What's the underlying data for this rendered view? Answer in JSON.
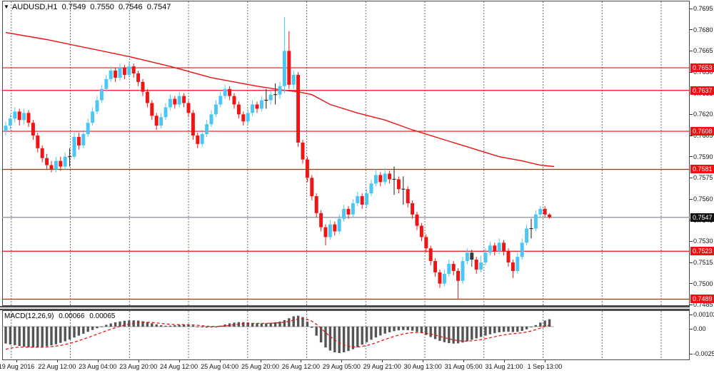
{
  "header": {
    "symbol": "AUDUSD,H1",
    "open": "0.7549",
    "high": "0.7550",
    "low": "0.7546",
    "close": "0.7547",
    "dropdown_arrow": "▼"
  },
  "colors": {
    "bull": "#4cc7f2",
    "bear": "#ee1515",
    "doji": "#1a1a1a",
    "black_candle": "#3a3a3a",
    "level_line": "#ee1111",
    "ma_line": "#ee1111",
    "bid_line": "#9aa1a8",
    "badge_bg": "#ee1111",
    "bid_badge_bg": "#111111",
    "badge_text": "#ffffff",
    "grid": "#6e6e6e",
    "border": "#4a4a4a",
    "macd_bar": "#555555",
    "macd_signal": "#ee1111"
  },
  "chart_data": {
    "type": "candlestick",
    "symbol": "AUDUSD",
    "timeframe": "H1",
    "title": "AUDUSD,H1 0.7549 0.7550 0.7546 0.7547",
    "y_axis": {
      "min": 0.7485,
      "max": 0.7695,
      "step": 0.0015
    },
    "price_axis_ticks": [
      "0.7695",
      "0.7680",
      "0.7665",
      "0.7650",
      "0.7635",
      "0.7620",
      "0.7605",
      "0.7590",
      "0.7575",
      "0.7560",
      "0.7545",
      "0.7530",
      "0.7515",
      "0.7500",
      "0.7485"
    ],
    "time_axis_labels": [
      "19 Aug 2016",
      "22 Aug 12:00",
      "23 Aug 04:00",
      "23 Aug 20:00",
      "24 Aug 12:00",
      "25 Aug 04:00",
      "25 Aug 20:00",
      "26 Aug 12:00",
      "29 Aug 05:00",
      "29 Aug 21:00",
      "30 Aug 13:00",
      "31 Aug 05:00",
      "31 Aug 21:00",
      "1 Sep 13:00"
    ],
    "levels": [
      "0.7653",
      "0.7637",
      "0.7608",
      "0.7581",
      "0.7523",
      "0.7489"
    ],
    "bid": "0.7547",
    "candles": [
      [
        7608,
        7615,
        7605,
        7612
      ],
      [
        7612,
        7620,
        7609,
        7617
      ],
      [
        7617,
        7625,
        7614,
        7622
      ],
      [
        7622,
        7624,
        7612,
        7616
      ],
      [
        7616,
        7624,
        7613,
        7621
      ],
      [
        7621,
        7623,
        7611,
        7614
      ],
      [
        7614,
        7616,
        7602,
        7605
      ],
      [
        7605,
        7607,
        7593,
        7596
      ],
      [
        7596,
        7598,
        7586,
        7589
      ],
      [
        7589,
        7592,
        7581,
        7584
      ],
      [
        7584,
        7587,
        7579,
        7581
      ],
      [
        7581,
        7590,
        7579,
        7587
      ],
      [
        7587,
        7590,
        7580,
        7583
      ],
      [
        7583,
        7593,
        7581,
        7590
      ],
      [
        7590,
        7596,
        7583,
        7590
      ],
      [
        7590,
        7607,
        7588,
        7604
      ],
      [
        7604,
        7607,
        7595,
        7598
      ],
      [
        7598,
        7609,
        7596,
        7606
      ],
      [
        7606,
        7617,
        7604,
        7614
      ],
      [
        7614,
        7625,
        7612,
        7622
      ],
      [
        7622,
        7633,
        7620,
        7630
      ],
      [
        7630,
        7641,
        7628,
        7638
      ],
      [
        7638,
        7648,
        7636,
        7645
      ],
      [
        7645,
        7654,
        7643,
        7651
      ],
      [
        7651,
        7653,
        7643,
        7646
      ],
      [
        7646,
        7656,
        7644,
        7653
      ],
      [
        7653,
        7655,
        7645,
        7648
      ],
      [
        7648,
        7657,
        7646,
        7654
      ],
      [
        7654,
        7656,
        7646,
        7649
      ],
      [
        7649,
        7651,
        7640,
        7643
      ],
      [
        7643,
        7645,
        7633,
        7636
      ],
      [
        7636,
        7638,
        7625,
        7628
      ],
      [
        7628,
        7630,
        7616,
        7619
      ],
      [
        7619,
        7621,
        7609,
        7612
      ],
      [
        7612,
        7621,
        7610,
        7618
      ],
      [
        7618,
        7628,
        7616,
        7625
      ],
      [
        7625,
        7634,
        7623,
        7631
      ],
      [
        7631,
        7633,
        7624,
        7627
      ],
      [
        7627,
        7636,
        7625,
        7633
      ],
      [
        7633,
        7635,
        7625,
        7628
      ],
      [
        7628,
        7630,
        7618,
        7621
      ],
      [
        7621,
        7623,
        7602,
        7605
      ],
      [
        7605,
        7607,
        7596,
        7599
      ],
      [
        7599,
        7609,
        7597,
        7606
      ],
      [
        7606,
        7616,
        7604,
        7613
      ],
      [
        7613,
        7623,
        7611,
        7620
      ],
      [
        7620,
        7630,
        7618,
        7627
      ],
      [
        7627,
        7636,
        7625,
        7633
      ],
      [
        7633,
        7641,
        7631,
        7638
      ],
      [
        7638,
        7640,
        7630,
        7633
      ],
      [
        7633,
        7635,
        7624,
        7627
      ],
      [
        7627,
        7629,
        7617,
        7620
      ],
      [
        7620,
        7622,
        7612,
        7615
      ],
      [
        7615,
        7624,
        7613,
        7621
      ],
      [
        7621,
        7630,
        7619,
        7627
      ],
      [
        7627,
        7629,
        7621,
        7624
      ],
      [
        7624,
        7633,
        7622,
        7630
      ],
      [
        7630,
        7638,
        7624,
        7630
      ],
      [
        7630,
        7637,
        7627,
        7634
      ],
      [
        7634,
        7642,
        7627,
        7634
      ],
      [
        7634,
        7643,
        7631,
        7640
      ],
      [
        7640,
        7689,
        7635,
        7665
      ],
      [
        7665,
        7679,
        7638,
        7641
      ],
      [
        7641,
        7651,
        7638,
        7648
      ],
      [
        7648,
        7650,
        7597,
        7600
      ],
      [
        7600,
        7602,
        7585,
        7588
      ],
      [
        7588,
        7590,
        7572,
        7575
      ],
      [
        7575,
        7577,
        7559,
        7562
      ],
      [
        7562,
        7564,
        7547,
        7550
      ],
      [
        7550,
        7552,
        7537,
        7540
      ],
      [
        7540,
        7542,
        7527,
        7533
      ],
      [
        7533,
        7545,
        7531,
        7542
      ],
      [
        7542,
        7544,
        7534,
        7537
      ],
      [
        7537,
        7549,
        7535,
        7546
      ],
      [
        7546,
        7556,
        7544,
        7553
      ],
      [
        7553,
        7555,
        7546,
        7549
      ],
      [
        7549,
        7560,
        7547,
        7557
      ],
      [
        7557,
        7565,
        7555,
        7562
      ],
      [
        7562,
        7564,
        7553,
        7556
      ],
      [
        7556,
        7567,
        7554,
        7564
      ],
      [
        7564,
        7574,
        7562,
        7571
      ],
      [
        7571,
        7581,
        7569,
        7577
      ],
      [
        7577,
        7579,
        7569,
        7572
      ],
      [
        7572,
        7582,
        7570,
        7578
      ],
      [
        7578,
        7580,
        7571,
        7574
      ],
      [
        7574,
        7583,
        7563,
        7574
      ],
      [
        7574,
        7576,
        7564,
        7567
      ],
      [
        7567,
        7576,
        7556,
        7567
      ],
      [
        7567,
        7569,
        7554,
        7557
      ],
      [
        7557,
        7559,
        7546,
        7549
      ],
      [
        7549,
        7551,
        7538,
        7541
      ],
      [
        7541,
        7543,
        7530,
        7533
      ],
      [
        7533,
        7535,
        7522,
        7525
      ],
      [
        7525,
        7527,
        7513,
        7516
      ],
      [
        7516,
        7518,
        7505,
        7508
      ],
      [
        7508,
        7510,
        7497,
        7500
      ],
      [
        7500,
        7510,
        7498,
        7507
      ],
      [
        7507,
        7517,
        7505,
        7514
      ],
      [
        7514,
        7516,
        7506,
        7509
      ],
      [
        7509,
        7511,
        7489,
        7502
      ],
      [
        7502,
        7519,
        7500,
        7516
      ],
      [
        7516,
        7525,
        7514,
        7522
      ],
      [
        7522,
        7524,
        7512,
        7517,
        1
      ],
      [
        7517,
        7519,
        7507,
        7510
      ],
      [
        7510,
        7520,
        7508,
        7515
      ],
      [
        7515,
        7525,
        7513,
        7522
      ],
      [
        7522,
        7530,
        7520,
        7527
      ],
      [
        7527,
        7529,
        7520,
        7523
      ],
      [
        7523,
        7532,
        7521,
        7529
      ],
      [
        7529,
        7531,
        7520,
        7523
      ],
      [
        7523,
        7525,
        7512,
        7515
      ],
      [
        7515,
        7517,
        7504,
        7509
      ],
      [
        7509,
        7522,
        7507,
        7519
      ],
      [
        7519,
        7532,
        7517,
        7529
      ],
      [
        7529,
        7542,
        7527,
        7539
      ],
      [
        7539,
        7546,
        7532,
        7539
      ],
      [
        7539,
        7552,
        7537,
        7549
      ],
      [
        7549,
        7555,
        7547,
        7553
      ],
      [
        7553,
        7555,
        7547,
        7549
      ],
      [
        7549,
        7550,
        7546,
        7547
      ]
    ],
    "ma_points": [
      [
        0,
        7678
      ],
      [
        9,
        7673
      ],
      [
        18,
        7667
      ],
      [
        27,
        7661
      ],
      [
        36,
        7654
      ],
      [
        45,
        7646
      ],
      [
        55,
        7640
      ],
      [
        61,
        7637
      ],
      [
        64,
        7636
      ],
      [
        67,
        7634
      ],
      [
        71,
        7627
      ],
      [
        77,
        7621
      ],
      [
        83,
        7616
      ],
      [
        89,
        7609
      ],
      [
        96,
        7602
      ],
      [
        102,
        7596
      ],
      [
        108,
        7590
      ],
      [
        113,
        7587
      ],
      [
        117,
        7584
      ],
      [
        120,
        7583
      ]
    ],
    "macd": {
      "name": "MACD(12,26,9)",
      "macd_value": "0.00066",
      "signal_value": "0.00065",
      "axis_ticks": [
        "0.00102",
        "0.00",
        "-0.00251"
      ],
      "histogram": [
        -150,
        -158,
        -165,
        -172,
        -178,
        -183,
        -185,
        -184,
        -180,
        -174,
        -166,
        -156,
        -144,
        -130,
        -114,
        -97,
        -80,
        -63,
        -46,
        -30,
        -14,
        2,
        16,
        28,
        38,
        46,
        52,
        55,
        56,
        54,
        48,
        40,
        30,
        20,
        12,
        8,
        9,
        12,
        15,
        17,
        15,
        9,
        1,
        -6,
        -9,
        -7,
        0,
        9,
        19,
        29,
        36,
        40,
        40,
        37,
        32,
        29,
        28,
        30,
        34,
        39,
        45,
        58,
        75,
        92,
        97,
        85,
        45,
        -10,
        -80,
        -140,
        -185,
        -212,
        -228,
        -234,
        -228,
        -216,
        -200,
        -182,
        -160,
        -138,
        -116,
        -96,
        -78,
        -62,
        -50,
        -40,
        -33,
        -30,
        -31,
        -36,
        -45,
        -58,
        -74,
        -92,
        -110,
        -126,
        -138,
        -146,
        -150,
        -148,
        -141,
        -130,
        -117,
        -104,
        -92,
        -80,
        -68,
        -58,
        -50,
        -46,
        -45,
        -48,
        -46,
        -38,
        -24,
        -6,
        14,
        36,
        54,
        66
      ],
      "signal_seed": -215,
      "signal_alpha": 0.22
    }
  }
}
